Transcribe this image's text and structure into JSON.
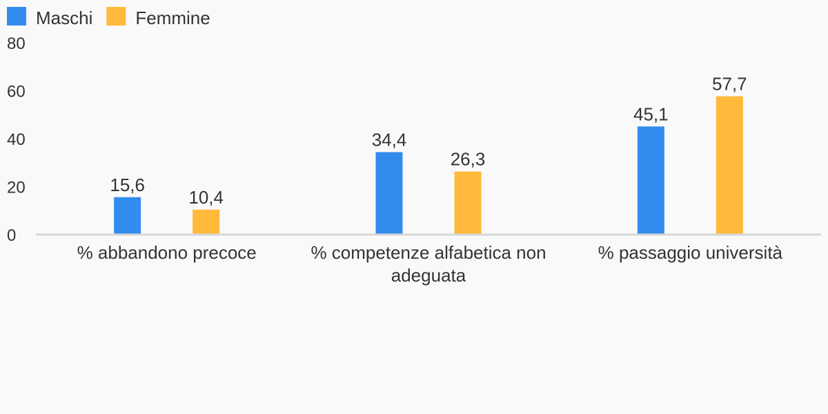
{
  "chart_data": {
    "type": "bar",
    "title": "",
    "xlabel": "",
    "ylabel": "",
    "ylim": [
      0,
      80
    ],
    "yticks": [
      0,
      20,
      40,
      60,
      80
    ],
    "grid": false,
    "legend_position": "top-left",
    "categories": [
      [
        "% abbandono precoce"
      ],
      [
        "% competenze alfabetica non",
        "adeguata"
      ],
      [
        "% passaggio università"
      ]
    ],
    "series": [
      {
        "name": "Maschi",
        "color": "#318CEE",
        "values": [
          15.6,
          34.4,
          45.1
        ],
        "labels": [
          "15,6",
          "34,4",
          "45,1"
        ]
      },
      {
        "name": "Femmine",
        "color": "#FFBA3B",
        "values": [
          10.4,
          26.3,
          57.7
        ],
        "labels": [
          "10,4",
          "26,3",
          "57,7"
        ]
      }
    ]
  }
}
